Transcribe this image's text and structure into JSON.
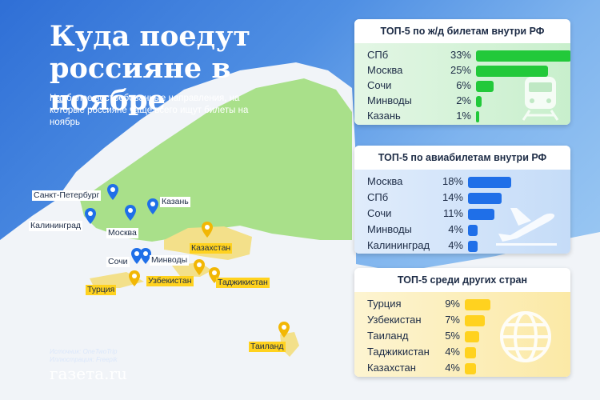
{
  "title": "Куда поедут россияне в ноябре",
  "subtitle": "Наиболее востребованные направления, на которые россияне чаще всего ищут билеты на ноябрь",
  "source": "Источник: OneTwoTrip",
  "illustration": "Иллюстрация: Freepik",
  "brand": "газета.ru",
  "colors": {
    "rail": "#22c93a",
    "air": "#1f6fe8",
    "abroad": "#ffd21f",
    "russia_land": "#a9e08a",
    "abroad_land": "#f3e08a"
  },
  "map_labels": {
    "spb": "Санкт-Петербург",
    "kaliningrad": "Калининград",
    "moscow": "Москва",
    "kazan": "Казань",
    "sochi": "Сочи",
    "minvody": "Минводы",
    "turkey": "Турция",
    "uzbekistan": "Узбекистан",
    "kazakhstan": "Казахстан",
    "tajikistan": "Таджикистан",
    "thailand": "Таиланд"
  },
  "chart_data": [
    {
      "type": "bar",
      "orientation": "horizontal",
      "title": "ТОП-5 по ж/д билетам внутри РФ",
      "categories": [
        "СПб",
        "Москва",
        "Сочи",
        "Минводы",
        "Казань"
      ],
      "labels": [
        "33%",
        "25%",
        "6%",
        "2%",
        "1%"
      ],
      "values": [
        33,
        25,
        6,
        2,
        1
      ],
      "unit": "%",
      "icon": "train-icon"
    },
    {
      "type": "bar",
      "orientation": "horizontal",
      "title": "ТОП-5 по авиабилетам внутри РФ",
      "categories": [
        "Москва",
        "СПб",
        "Сочи",
        "Минводы",
        "Калининград"
      ],
      "labels": [
        "18%",
        "14%",
        "11%",
        "4%",
        "4%"
      ],
      "values": [
        18,
        14,
        11,
        4,
        4
      ],
      "unit": "%",
      "icon": "airplane-icon"
    },
    {
      "type": "bar",
      "orientation": "horizontal",
      "title": "ТОП-5 среди других стран",
      "categories": [
        "Турция",
        "Узбекистан",
        "Таиланд",
        "Таджикистан",
        "Казахстан"
      ],
      "labels": [
        "9%",
        "7%",
        "5%",
        "4%",
        "4%"
      ],
      "values": [
        9,
        7,
        5,
        4,
        4
      ],
      "unit": "%",
      "icon": "globe-icon"
    }
  ]
}
